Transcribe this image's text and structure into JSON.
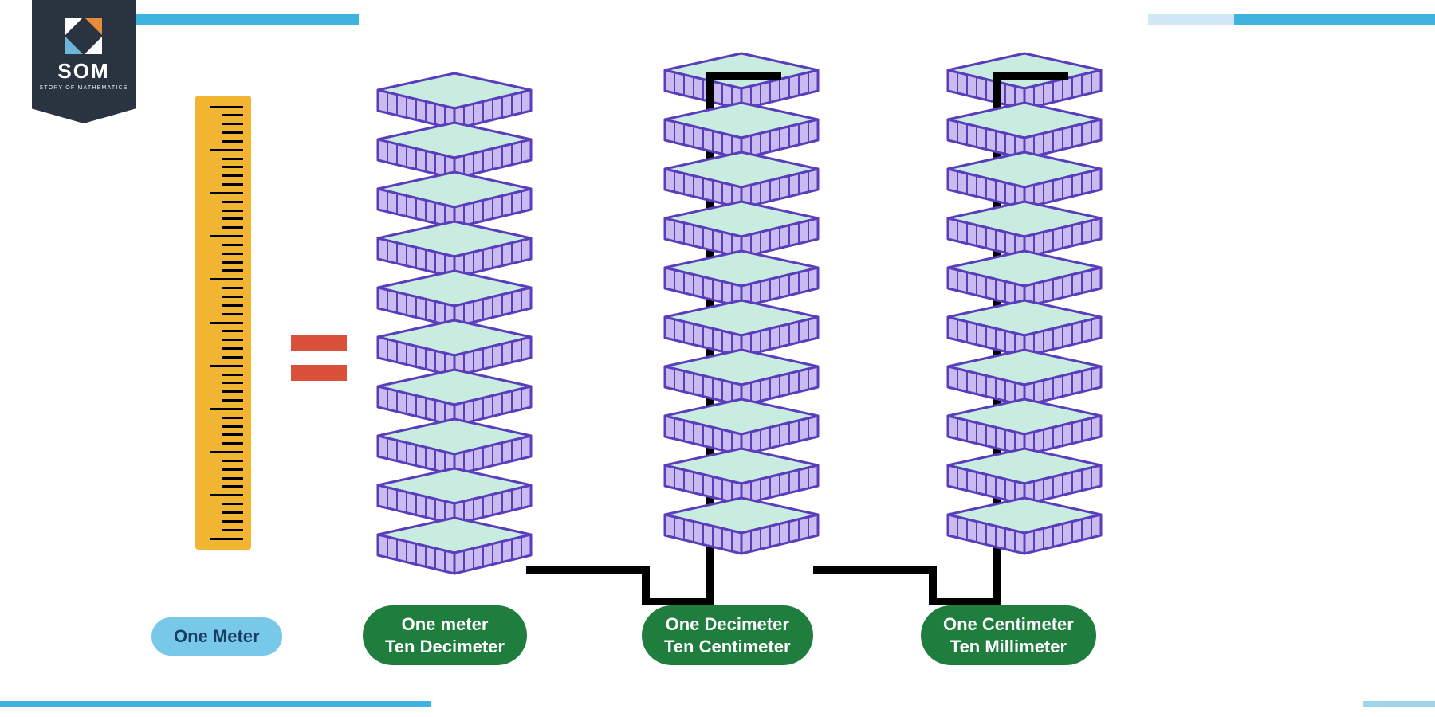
{
  "branding": {
    "title": "SOM",
    "subtitle": "STORY OF MATHEMATICS",
    "badge_bg": "#2a3440",
    "logo_colors": {
      "tl": "#ffffff",
      "tr": "#e88b3a",
      "bl": "#6cb6d9",
      "br": "#ffffff"
    }
  },
  "bars": {
    "top": [
      {
        "width_pct": 3,
        "color": "#ffffff"
      },
      {
        "width_pct": 22,
        "color": "#3eb3e0"
      },
      {
        "width_pct": 55,
        "color": "#ffffff"
      },
      {
        "width_pct": 6,
        "color": "#cfe9f4"
      },
      {
        "width_pct": 14,
        "color": "#3eb3e0"
      }
    ],
    "bottom": [
      {
        "width_pct": 30,
        "color": "#3eb3e0"
      },
      {
        "width_pct": 65,
        "color": "#ffffff"
      },
      {
        "width_pct": 5,
        "color": "#9fd4eb"
      }
    ]
  },
  "equals": {
    "bar_color": "#d9513a"
  },
  "ruler": {
    "bg_color": "#f2b531",
    "tick_color": "#000000",
    "major_tick_count": 11,
    "minor_per_major": 4
  },
  "tile_style": {
    "top_fill": "#c9ece0",
    "side_fill": "#c9baf0",
    "stroke": "#5a3dbb",
    "stroke_width": 3,
    "ridge_count": 7
  },
  "stacks": {
    "count_per_stack": 10
  },
  "connector": {
    "stroke": "#000000",
    "stroke_width": 10
  },
  "labels": {
    "meter": {
      "line1": "One Meter",
      "bg": "#78c8ea",
      "fg": "#1a3e63"
    },
    "decimeter": {
      "line1": "One meter",
      "line2": "Ten Decimeter",
      "bg": "#1f7d3d",
      "fg": "#ffffff"
    },
    "centimeter": {
      "line1": "One Decimeter",
      "line2": "Ten Centimeter",
      "bg": "#1f7d3d",
      "fg": "#ffffff"
    },
    "millimeter": {
      "line1": "One Centimeter",
      "line2": "Ten Millimeter",
      "bg": "#1f7d3d",
      "fg": "#ffffff"
    }
  }
}
